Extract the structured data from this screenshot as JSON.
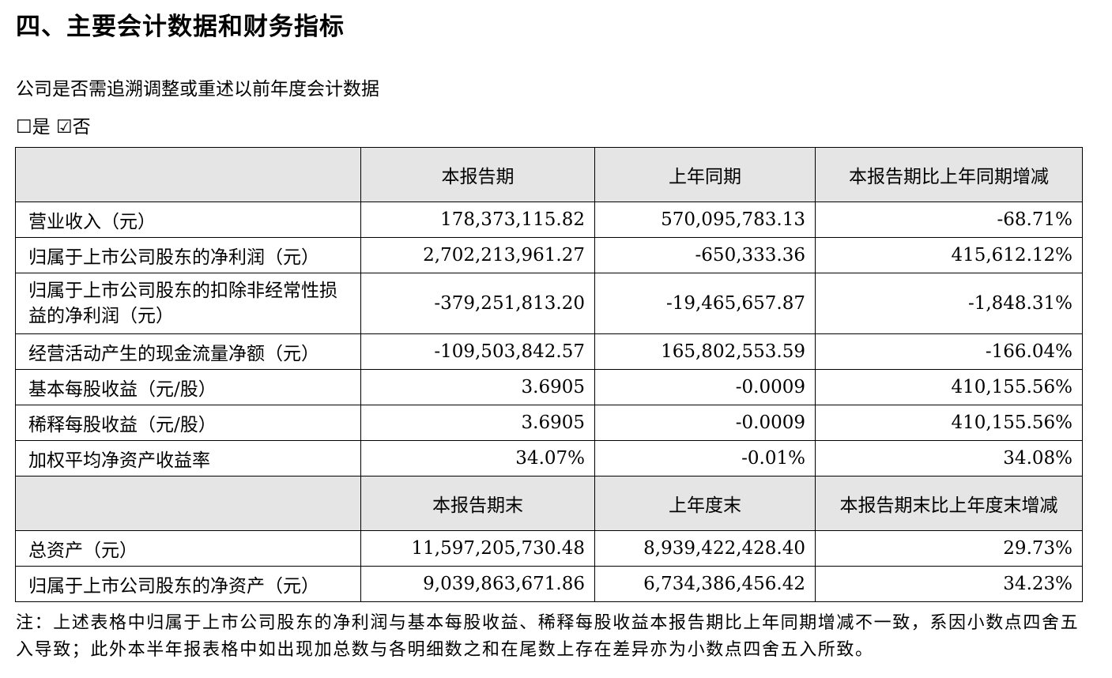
{
  "heading": "四、主要会计数据和财务指标",
  "question": "公司是否需追溯调整或重述以前年度会计数据",
  "options": [
    {
      "box": "☐",
      "label": "是"
    },
    {
      "box": "☑",
      "label": "否"
    }
  ],
  "table": {
    "header1": [
      "",
      "本报告期",
      "上年同期",
      "本报告期比上年同期增减"
    ],
    "rows1": [
      [
        "营业收入（元）",
        "178,373,115.82",
        "570,095,783.13",
        "-68.71%"
      ],
      [
        "归属于上市公司股东的净利润（元）",
        "2,702,213,961.27",
        "-650,333.36",
        "415,612.12%"
      ],
      [
        "归属于上市公司股东的扣除非经常性损益的净利润（元）",
        "-379,251,813.20",
        "-19,465,657.87",
        "-1,848.31%"
      ],
      [
        "经营活动产生的现金流量净额（元）",
        "-109,503,842.57",
        "165,802,553.59",
        "-166.04%"
      ],
      [
        "基本每股收益（元/股）",
        "3.6905",
        "-0.0009",
        "410,155.56%"
      ],
      [
        "稀释每股收益（元/股）",
        "3.6905",
        "-0.0009",
        "410,155.56%"
      ],
      [
        "加权平均净资产收益率",
        "34.07%",
        "-0.01%",
        "34.08%"
      ]
    ],
    "header2": [
      "",
      "本报告期末",
      "上年度末",
      "本报告期末比上年度末增减"
    ],
    "rows2": [
      [
        "总资产（元）",
        "11,597,205,730.48",
        "8,939,422,428.40",
        "29.73%"
      ],
      [
        "归属于上市公司股东的净资产（元）",
        "9,039,863,671.86",
        "6,734,386,456.42",
        "34.23%"
      ]
    ]
  },
  "note": "注：上述表格中归属于上市公司股东的净利润与基本每股收益、稀释每股收益本报告期比上年同期增减不一致，系因小数点四舍五入导致；此外本半年报表格中如出现加总数与各明细数之和在尾数上存在差异亦为小数点四舍五入所致。"
}
